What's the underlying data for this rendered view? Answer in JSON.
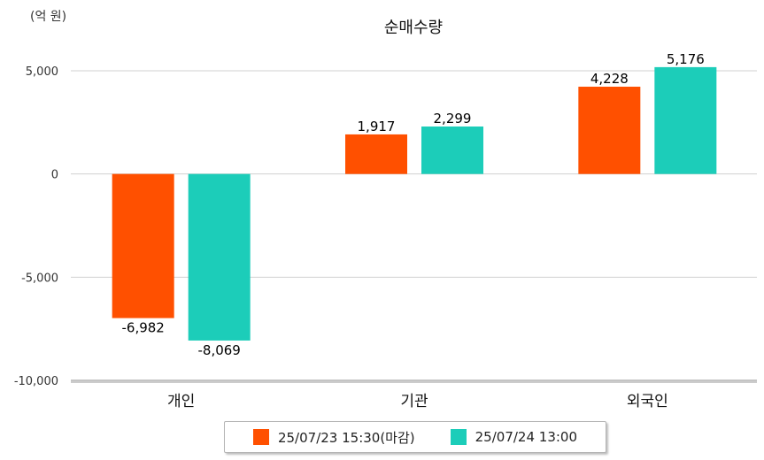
{
  "chart_data": {
    "type": "bar",
    "title": "순매수량",
    "unit_label": "(억 원)",
    "categories": [
      "개인",
      "기관",
      "외국인"
    ],
    "series": [
      {
        "name": "25/07/23 15:30(마감)",
        "color": "#ff5000",
        "values": [
          -6982,
          1917,
          4228
        ],
        "labels": [
          "-6,982",
          "1,917",
          "4,228"
        ]
      },
      {
        "name": "25/07/24 13:00",
        "color": "#1ccdb9",
        "values": [
          -8069,
          2299,
          5176
        ],
        "labels": [
          "-8,069",
          "2,299",
          "5,176"
        ]
      }
    ],
    "ylim": [
      -10000,
      5000
    ],
    "yticks": [
      5000,
      0,
      -5000,
      -10000
    ],
    "ytick_labels": [
      "5,000",
      "0",
      "-5,000",
      "-10,000"
    ],
    "grid": true,
    "legend_position": "bottom"
  }
}
